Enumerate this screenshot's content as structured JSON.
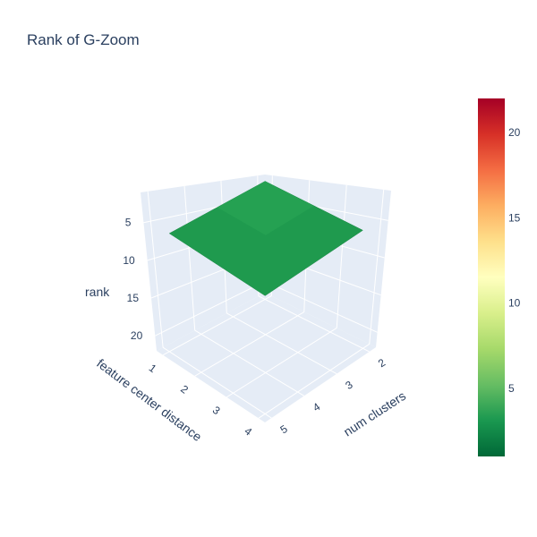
{
  "chart_data": {
    "type": "surface",
    "title": "Rank of G-Zoom",
    "x_label": "num clusters",
    "y_label": "feature center distance",
    "z_label": "rank",
    "x_ticks": [
      "2",
      "3",
      "4",
      "5"
    ],
    "y_ticks": [
      "1",
      "2",
      "3",
      "4"
    ],
    "z_ticks": [
      "5",
      "10",
      "15",
      "20"
    ],
    "z_range": [
      22,
      1
    ],
    "z_reversed": true,
    "x": [
      2,
      3,
      4,
      5
    ],
    "y": [
      1,
      2,
      3,
      4
    ],
    "z": [
      [
        1,
        1,
        1,
        1
      ],
      [
        1,
        1,
        1,
        1
      ],
      [
        1,
        1,
        1,
        1
      ],
      [
        1,
        1,
        1,
        1
      ]
    ],
    "colorscale": "RdYlGn (reversed)",
    "colorbar": {
      "range": [
        1,
        22
      ],
      "ticks": [
        "5",
        "10",
        "15",
        "20"
      ],
      "colors": [
        "#006837",
        "#1a9850",
        "#66bd63",
        "#a6d96a",
        "#d9ef8b",
        "#ffffbf",
        "#fee08b",
        "#fdae61",
        "#f46d43",
        "#d73027",
        "#a50026"
      ]
    },
    "surface_color": "#1f9a4e",
    "scene_background": "#e5ecf6",
    "grid_color": "#ffffff"
  }
}
